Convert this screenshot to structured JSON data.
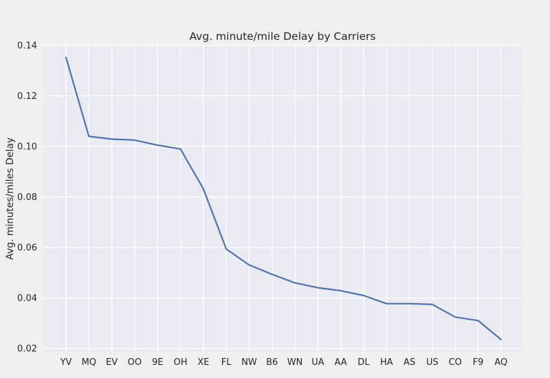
{
  "chart_data": {
    "type": "line",
    "title": "Avg. minute/mile Delay by Carriers",
    "xlabel": "",
    "ylabel": "Avg. minutes/miles Delay",
    "categories": [
      "YV",
      "MQ",
      "EV",
      "OO",
      "9E",
      "OH",
      "XE",
      "FL",
      "NW",
      "B6",
      "WN",
      "UA",
      "AA",
      "DL",
      "HA",
      "AS",
      "US",
      "CO",
      "F9",
      "AQ"
    ],
    "series": [
      {
        "values": [
          0.1352,
          0.104,
          0.1029,
          0.1025,
          0.1005,
          0.099,
          0.0832,
          0.0594,
          0.0531,
          0.0494,
          0.046,
          0.0441,
          0.0429,
          0.041,
          0.0378,
          0.0378,
          0.0375,
          0.0325,
          0.0311,
          0.0236
        ],
        "color": "#4c72b0"
      }
    ],
    "yticks": [
      "0.02",
      "0.04",
      "0.06",
      "0.08",
      "0.10",
      "0.12",
      "0.14"
    ],
    "ylim": [
      0.0187,
      0.14
    ],
    "grid": true,
    "plot_background": "#eaeaf2",
    "grid_color": "#ffffff"
  }
}
